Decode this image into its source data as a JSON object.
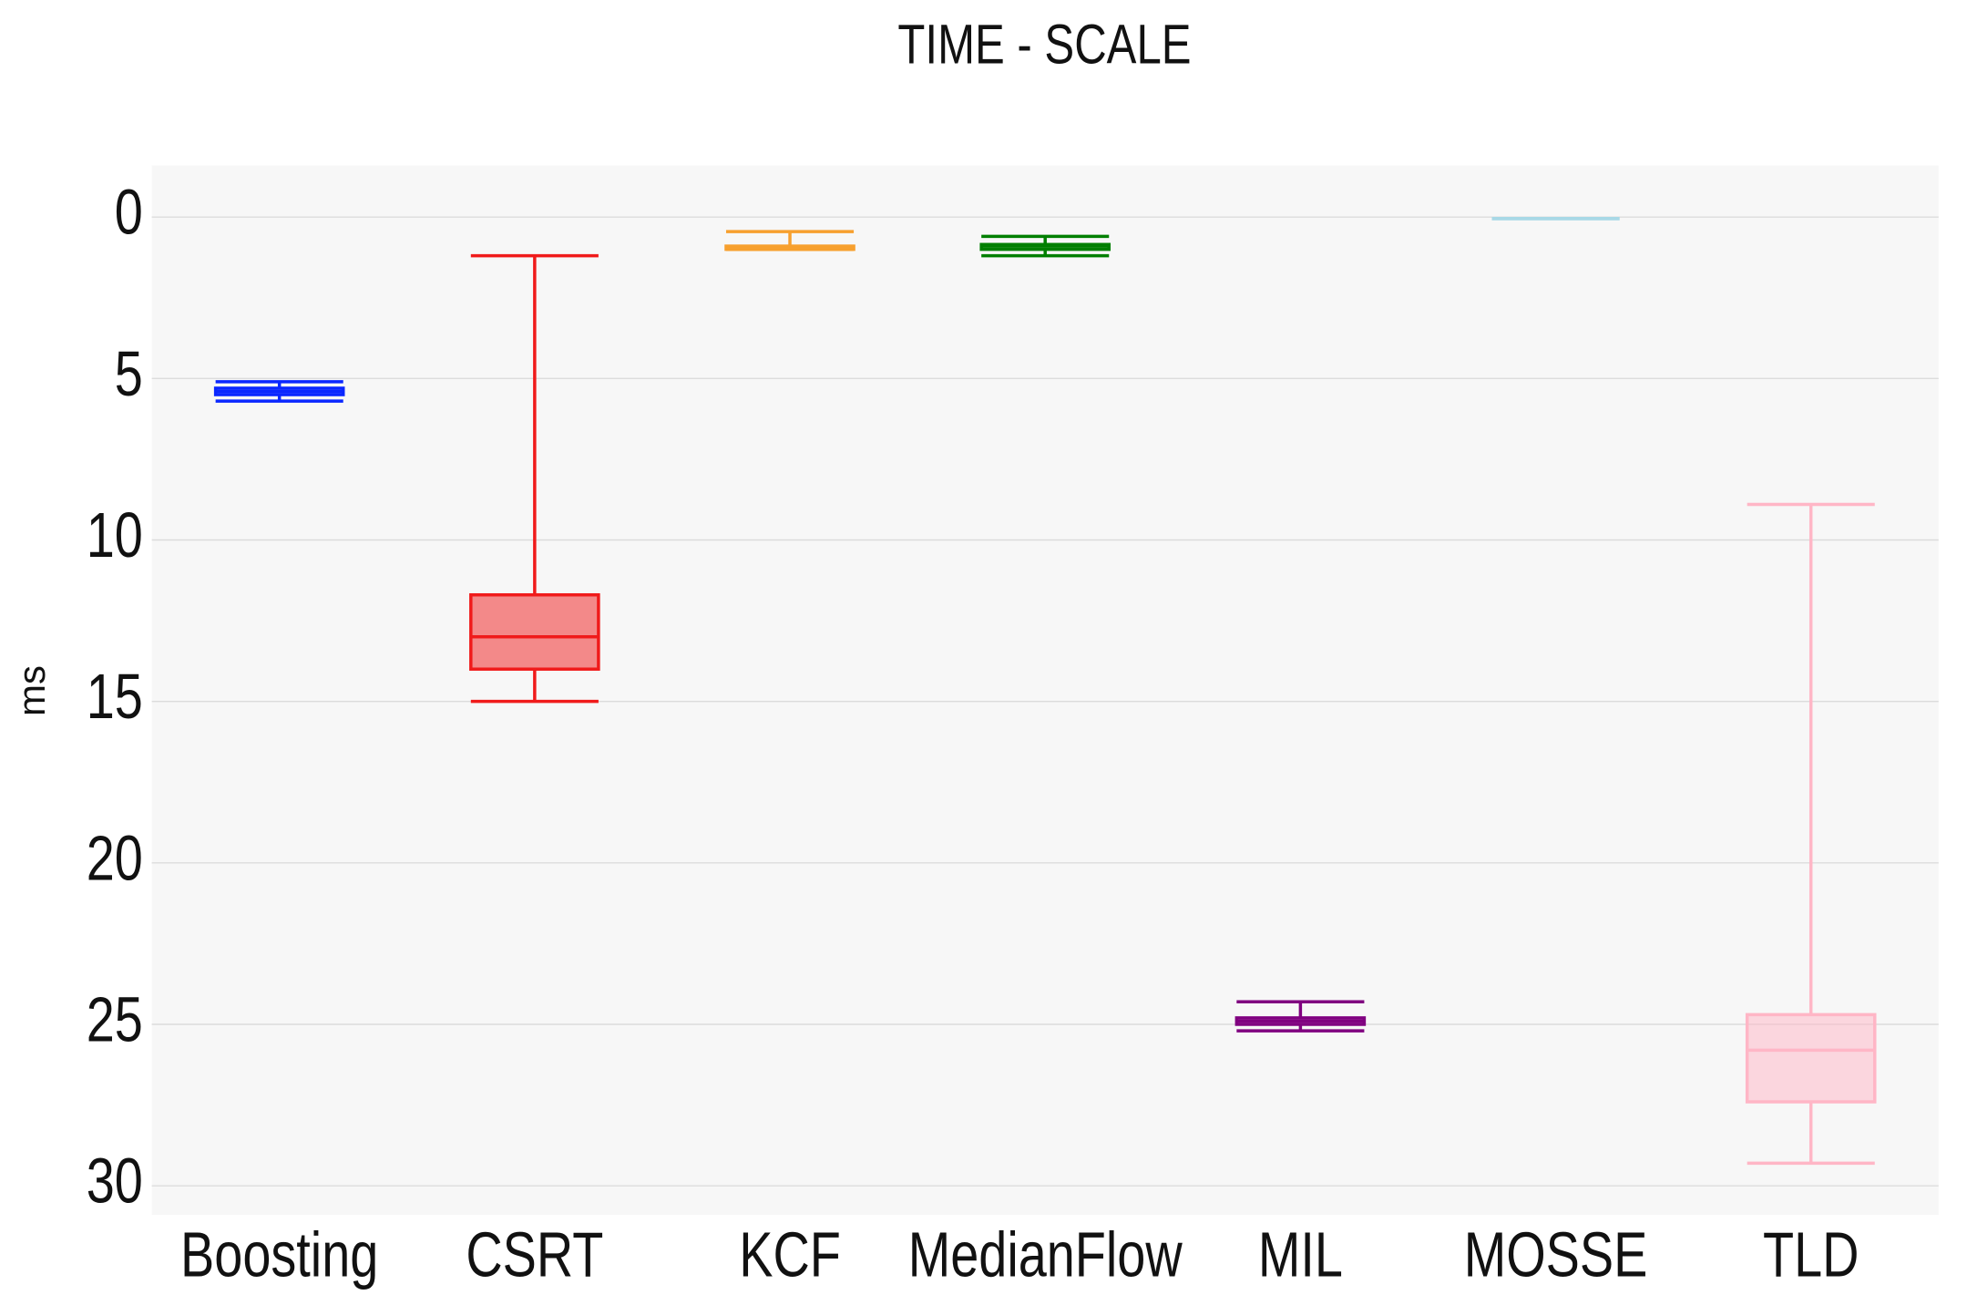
{
  "chart_data": {
    "type": "box",
    "title": "TIME - SCALE",
    "y_label": "ms",
    "categories": [
      "Boosting",
      "CSRT",
      "KCF",
      "MedianFlow",
      "MIL",
      "MOSSE",
      "TLD"
    ],
    "boxes": [
      {
        "color": "#0a27ff",
        "min": 5.1,
        "q1": 5.3,
        "median": 5.4,
        "q3": 5.5,
        "max": 5.7
      },
      {
        "color": "#f01b1b",
        "min": 1.2,
        "q1": 11.7,
        "median": 13.0,
        "q3": 14.0,
        "max": 15.0
      },
      {
        "color": "#f7a02f",
        "min": 0.45,
        "q1": 0.9,
        "median": 0.95,
        "q3": 1.0,
        "max": 1.0
      },
      {
        "color": "#007f00",
        "min": 0.6,
        "q1": 0.85,
        "median": 0.9,
        "q3": 1.0,
        "max": 1.2
      },
      {
        "color": "#800080",
        "min": 24.3,
        "q1": 24.8,
        "median": 24.9,
        "q3": 25.0,
        "max": 25.2
      },
      {
        "color": "#a8d8e6",
        "min": 0.05,
        "q1": 0.05,
        "median": 0.05,
        "q3": 0.05,
        "max": 0.05
      },
      {
        "color": "#ffb6c6",
        "min": 8.9,
        "q1": 24.7,
        "median": 25.8,
        "q3": 27.4,
        "max": 29.3
      }
    ],
    "ylim": [
      -1.6,
      30.9
    ],
    "y_reversed": true,
    "yticks": [
      0,
      5,
      10,
      15,
      20,
      25,
      30
    ],
    "grid": true
  }
}
